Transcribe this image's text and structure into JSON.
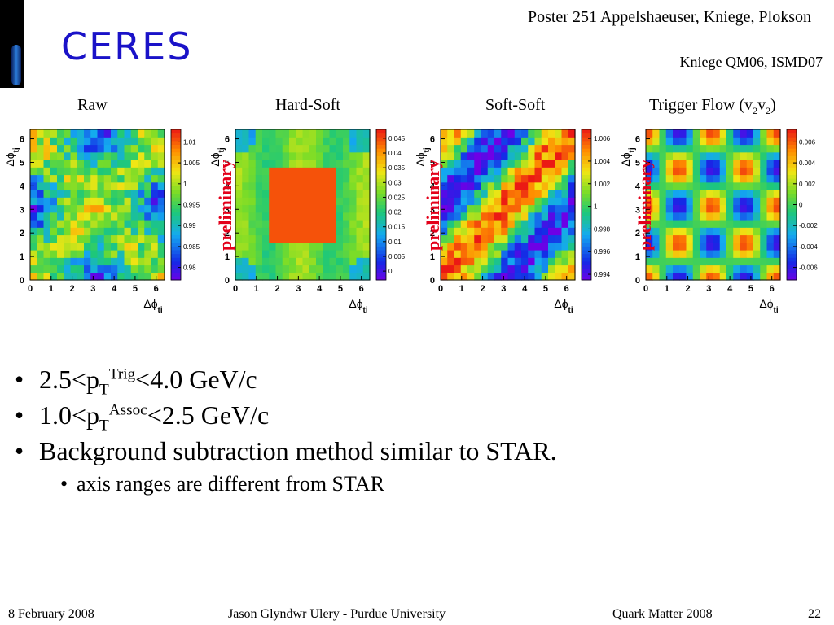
{
  "header": {
    "logo": "CERES",
    "poster_line": "Poster 251 Appelshaeuser, Kniege, Plokson",
    "reference": "Kniege QM06, ISMD07"
  },
  "panels": [
    {
      "title": "Raw",
      "prelim": ""
    },
    {
      "title": "Hard-Soft",
      "prelim": "preliminary"
    },
    {
      "title": "Soft-Soft",
      "prelim": "preliminary"
    },
    {
      "title_main": "Trigger Flow (v",
      "title_sub1": "2",
      "title_mid": "v",
      "title_sub2": "2",
      "title_end": ")",
      "prelim": "preliminary"
    }
  ],
  "chart_data": [
    {
      "type": "heatmap",
      "title": "Raw",
      "xlabel": "Δφ_ti",
      "ylabel": "Δφ_tj",
      "xticks": [
        "0",
        "1",
        "2",
        "3",
        "4",
        "5",
        "6"
      ],
      "yticks": [
        "0",
        "1",
        "2",
        "3",
        "4",
        "5",
        "6"
      ],
      "colorbar_ticks": [
        "0.98",
        "0.985",
        "0.99",
        "0.995",
        "1",
        "1.005",
        "1.01"
      ],
      "zlim": [
        0.977,
        1.013
      ],
      "pattern": "raw"
    },
    {
      "type": "heatmap",
      "title": "Hard-Soft",
      "xlabel": "Δφ_ti",
      "ylabel": "Δφ_tj",
      "xticks": [
        "0",
        "1",
        "2",
        "3",
        "4",
        "5",
        "6"
      ],
      "yticks": [
        "0",
        "1",
        "2",
        "3",
        "4",
        "5",
        "6"
      ],
      "colorbar_ticks": [
        "0",
        "0.005",
        "0.01",
        "0.015",
        "0.02",
        "0.025",
        "0.03",
        "0.035",
        "0.04",
        "0.045"
      ],
      "zlim": [
        -0.003,
        0.048
      ],
      "pattern": "hardsoft"
    },
    {
      "type": "heatmap",
      "title": "Soft-Soft",
      "xlabel": "Δφ_ti",
      "ylabel": "Δφ_tj",
      "xticks": [
        "0",
        "1",
        "2",
        "3",
        "4",
        "5",
        "6"
      ],
      "yticks": [
        "0",
        "1",
        "2",
        "3",
        "4",
        "5",
        "6"
      ],
      "colorbar_ticks": [
        "0.994",
        "0.996",
        "0.998",
        "1",
        "1.002",
        "1.004",
        "1.006"
      ],
      "zlim": [
        0.9935,
        1.0068
      ],
      "pattern": "softsoft"
    },
    {
      "type": "heatmap",
      "title": "Trigger Flow (v2v2)",
      "xlabel": "Δφ_ti",
      "ylabel": "Δφ_tj",
      "xticks": [
        "0",
        "1",
        "2",
        "3",
        "4",
        "5",
        "6"
      ],
      "yticks": [
        "0",
        "1",
        "2",
        "3",
        "4",
        "5",
        "6"
      ],
      "colorbar_ticks": [
        "-0.006",
        "-0.004",
        "-0.002",
        "0",
        "0.002",
        "0.004",
        "0.006"
      ],
      "zlim": [
        -0.0072,
        0.0072
      ],
      "pattern": "flow"
    }
  ],
  "bullets": {
    "b1": {
      "pre": "2.5<p",
      "sub": "T",
      "sup": "Trig",
      "post": "<4.0 GeV/c"
    },
    "b2": {
      "pre": "1.0<p",
      "sub": "T",
      "sup": "Assoc",
      "post": "<2.5 GeV/c"
    },
    "b3": "Background subtraction method similar to STAR.",
    "b3_sub": "axis ranges are different from STAR",
    "marker": "•"
  },
  "footer": {
    "date": "8 February 2008",
    "author": "Jason Glyndwr Ulery - Purdue University",
    "conference": "Quark Matter 2008",
    "page": "22"
  }
}
